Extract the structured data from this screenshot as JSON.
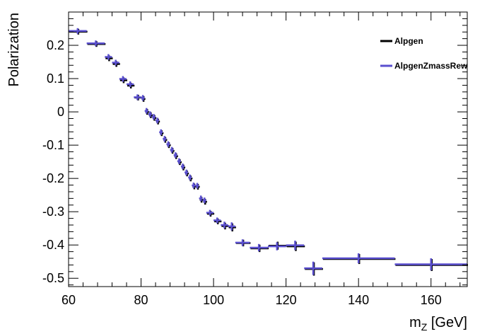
{
  "chart_data": {
    "type": "scatter",
    "title": "",
    "xlabel": {
      "main": "m",
      "sub": "Z",
      "unit": " [GeV]"
    },
    "ylabel": "Polarization",
    "xlim": [
      60,
      170
    ],
    "ylim": [
      -0.525,
      0.3
    ],
    "x_ticks": [
      60,
      80,
      100,
      120,
      140,
      160
    ],
    "x_tick_labels": [
      "60",
      "80",
      "100",
      "120",
      "140",
      "160"
    ],
    "y_ticks": [
      -0.5,
      -0.4,
      -0.3,
      -0.2,
      -0.1,
      0,
      0.1,
      0.2
    ],
    "y_tick_labels": [
      "-0.5",
      "-0.4",
      "-0.3",
      "-0.2",
      "-0.1",
      "0",
      "0.1",
      "0.2"
    ],
    "grid": false,
    "legend_position": "top-right",
    "series": [
      {
        "name": "Alpgen",
        "color": "#000000",
        "points": [
          {
            "x": 62.5,
            "y": 0.243,
            "xerr": 2.5,
            "yerr": 0.005
          },
          {
            "x": 67.5,
            "y": 0.206,
            "xerr": 2.5,
            "yerr": 0.006
          },
          {
            "x": 71,
            "y": 0.163,
            "xerr": 1,
            "yerr": 0.008
          },
          {
            "x": 73,
            "y": 0.146,
            "xerr": 1,
            "yerr": 0.008
          },
          {
            "x": 75,
            "y": 0.097,
            "xerr": 1,
            "yerr": 0.008
          },
          {
            "x": 77,
            "y": 0.081,
            "xerr": 1,
            "yerr": 0.008
          },
          {
            "x": 79,
            "y": 0.045,
            "xerr": 1,
            "yerr": 0.008
          },
          {
            "x": 80.5,
            "y": 0.041,
            "xerr": 0.5,
            "yerr": 0.008
          },
          {
            "x": 81.5,
            "y": 0.002,
            "xerr": 0.5,
            "yerr": 0.008
          },
          {
            "x": 82.5,
            "y": -0.008,
            "xerr": 0.5,
            "yerr": 0.007
          },
          {
            "x": 83.5,
            "y": -0.016,
            "xerr": 0.5,
            "yerr": 0.006
          },
          {
            "x": 84.5,
            "y": -0.027,
            "xerr": 0.5,
            "yerr": 0.006
          },
          {
            "x": 85.5,
            "y": -0.062,
            "xerr": 0.5,
            "yerr": 0.004
          },
          {
            "x": 86.5,
            "y": -0.082,
            "xerr": 0.5,
            "yerr": 0.003
          },
          {
            "x": 87.5,
            "y": -0.098,
            "xerr": 0.5,
            "yerr": 0.003
          },
          {
            "x": 88.5,
            "y": -0.115,
            "xerr": 0.5,
            "yerr": 0.002
          },
          {
            "x": 89.5,
            "y": -0.131,
            "xerr": 0.5,
            "yerr": 0.002
          },
          {
            "x": 90.5,
            "y": -0.149,
            "xerr": 0.5,
            "yerr": 0.002
          },
          {
            "x": 91.5,
            "y": -0.165,
            "xerr": 0.5,
            "yerr": 0.002
          },
          {
            "x": 92.5,
            "y": -0.183,
            "xerr": 0.5,
            "yerr": 0.003
          },
          {
            "x": 93.5,
            "y": -0.198,
            "xerr": 0.5,
            "yerr": 0.003
          },
          {
            "x": 94.5,
            "y": -0.222,
            "xerr": 0.5,
            "yerr": 0.004
          },
          {
            "x": 95.5,
            "y": -0.223,
            "xerr": 0.5,
            "yerr": 0.004
          },
          {
            "x": 96.5,
            "y": -0.262,
            "xerr": 0.5,
            "yerr": 0.006
          },
          {
            "x": 97.5,
            "y": -0.268,
            "xerr": 0.5,
            "yerr": 0.007
          },
          {
            "x": 99,
            "y": -0.304,
            "xerr": 1,
            "yerr": 0.008
          },
          {
            "x": 101,
            "y": -0.327,
            "xerr": 1,
            "yerr": 0.008
          },
          {
            "x": 103,
            "y": -0.341,
            "xerr": 1,
            "yerr": 0.01
          },
          {
            "x": 105,
            "y": -0.345,
            "xerr": 1,
            "yerr": 0.012
          },
          {
            "x": 108,
            "y": -0.392,
            "xerr": 2,
            "yerr": 0.01
          },
          {
            "x": 112.5,
            "y": -0.408,
            "xerr": 2.5,
            "yerr": 0.011
          },
          {
            "x": 117.5,
            "y": -0.4,
            "xerr": 2.5,
            "yerr": 0.012
          },
          {
            "x": 122.5,
            "y": -0.402,
            "xerr": 2.5,
            "yerr": 0.014
          },
          {
            "x": 127.5,
            "y": -0.47,
            "xerr": 2.5,
            "yerr": 0.02
          },
          {
            "x": 140,
            "y": -0.44,
            "xerr": 10,
            "yerr": 0.015
          },
          {
            "x": 160,
            "y": -0.458,
            "xerr": 10,
            "yerr": 0.018
          }
        ]
      },
      {
        "name": "AlpgenZmassRewe",
        "color": "#5a4fcf",
        "points": [
          {
            "x": 62.5,
            "y": 0.243,
            "xerr": 2.5,
            "yerr": 0.005
          },
          {
            "x": 67.5,
            "y": 0.206,
            "xerr": 2.5,
            "yerr": 0.006
          },
          {
            "x": 71,
            "y": 0.165,
            "xerr": 1,
            "yerr": 0.008
          },
          {
            "x": 73,
            "y": 0.148,
            "xerr": 1,
            "yerr": 0.008
          },
          {
            "x": 75,
            "y": 0.099,
            "xerr": 1,
            "yerr": 0.008
          },
          {
            "x": 77,
            "y": 0.083,
            "xerr": 1,
            "yerr": 0.008
          },
          {
            "x": 79,
            "y": 0.044,
            "xerr": 1,
            "yerr": 0.008
          },
          {
            "x": 80.5,
            "y": 0.042,
            "xerr": 0.5,
            "yerr": 0.008
          },
          {
            "x": 81.5,
            "y": 0.003,
            "xerr": 0.5,
            "yerr": 0.008
          },
          {
            "x": 82.5,
            "y": -0.007,
            "xerr": 0.5,
            "yerr": 0.007
          },
          {
            "x": 83.5,
            "y": -0.015,
            "xerr": 0.5,
            "yerr": 0.006
          },
          {
            "x": 84.5,
            "y": -0.026,
            "xerr": 0.5,
            "yerr": 0.006
          },
          {
            "x": 85.5,
            "y": -0.061,
            "xerr": 0.5,
            "yerr": 0.004
          },
          {
            "x": 86.5,
            "y": -0.081,
            "xerr": 0.5,
            "yerr": 0.003
          },
          {
            "x": 87.5,
            "y": -0.097,
            "xerr": 0.5,
            "yerr": 0.003
          },
          {
            "x": 88.5,
            "y": -0.114,
            "xerr": 0.5,
            "yerr": 0.002
          },
          {
            "x": 89.5,
            "y": -0.13,
            "xerr": 0.5,
            "yerr": 0.002
          },
          {
            "x": 90.5,
            "y": -0.148,
            "xerr": 0.5,
            "yerr": 0.002
          },
          {
            "x": 91.5,
            "y": -0.164,
            "xerr": 0.5,
            "yerr": 0.002
          },
          {
            "x": 92.5,
            "y": -0.182,
            "xerr": 0.5,
            "yerr": 0.003
          },
          {
            "x": 93.5,
            "y": -0.197,
            "xerr": 0.5,
            "yerr": 0.003
          },
          {
            "x": 94.5,
            "y": -0.221,
            "xerr": 0.5,
            "yerr": 0.004
          },
          {
            "x": 95.5,
            "y": -0.222,
            "xerr": 0.5,
            "yerr": 0.004
          },
          {
            "x": 96.5,
            "y": -0.26,
            "xerr": 0.5,
            "yerr": 0.006
          },
          {
            "x": 97.5,
            "y": -0.266,
            "xerr": 0.5,
            "yerr": 0.007
          },
          {
            "x": 99,
            "y": -0.303,
            "xerr": 1,
            "yerr": 0.008
          },
          {
            "x": 101,
            "y": -0.326,
            "xerr": 1,
            "yerr": 0.008
          },
          {
            "x": 103,
            "y": -0.34,
            "xerr": 1,
            "yerr": 0.01
          },
          {
            "x": 105,
            "y": -0.344,
            "xerr": 1,
            "yerr": 0.012
          },
          {
            "x": 108,
            "y": -0.393,
            "xerr": 2,
            "yerr": 0.01
          },
          {
            "x": 112.5,
            "y": -0.408,
            "xerr": 2.5,
            "yerr": 0.011
          },
          {
            "x": 117.5,
            "y": -0.404,
            "xerr": 2.5,
            "yerr": 0.012
          },
          {
            "x": 122.5,
            "y": -0.401,
            "xerr": 2.5,
            "yerr": 0.014
          },
          {
            "x": 127.5,
            "y": -0.47,
            "xerr": 2.5,
            "yerr": 0.02
          },
          {
            "x": 140,
            "y": -0.44,
            "xerr": 10,
            "yerr": 0.015
          },
          {
            "x": 160,
            "y": -0.458,
            "xerr": 10,
            "yerr": 0.018
          }
        ]
      }
    ]
  }
}
